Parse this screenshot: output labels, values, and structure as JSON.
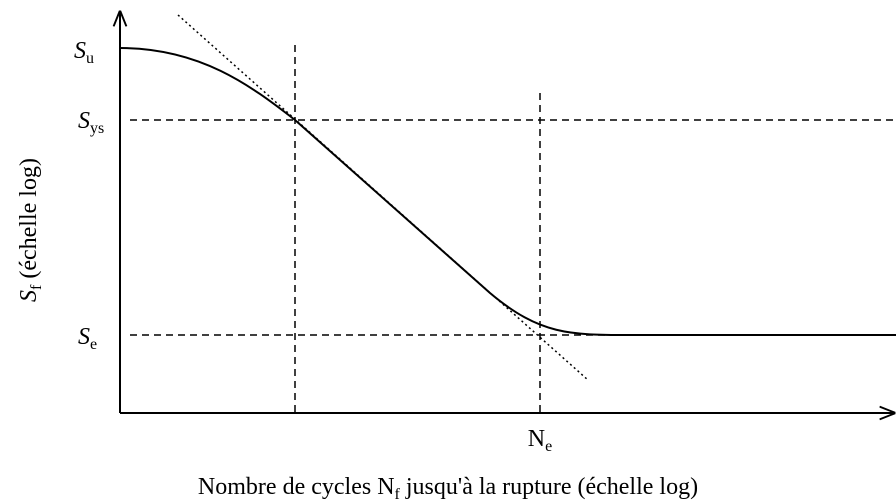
{
  "y_axis_label": {
    "symbol": "S",
    "subscript": "f",
    "text": "(échelle log)"
  },
  "x_axis_label": {
    "before": "Nombre de cycles",
    "symbol": "N",
    "subscript": "f",
    "after": "jusqu'à la rupture (échelle log)"
  },
  "levels": [
    {
      "symbol": "S",
      "subscript": "u"
    },
    {
      "symbol": "S",
      "subscript": "ys"
    },
    {
      "symbol": "S",
      "subscript": "e"
    }
  ],
  "markers": [
    {
      "symbol": "N",
      "subscript": "e"
    }
  ]
}
